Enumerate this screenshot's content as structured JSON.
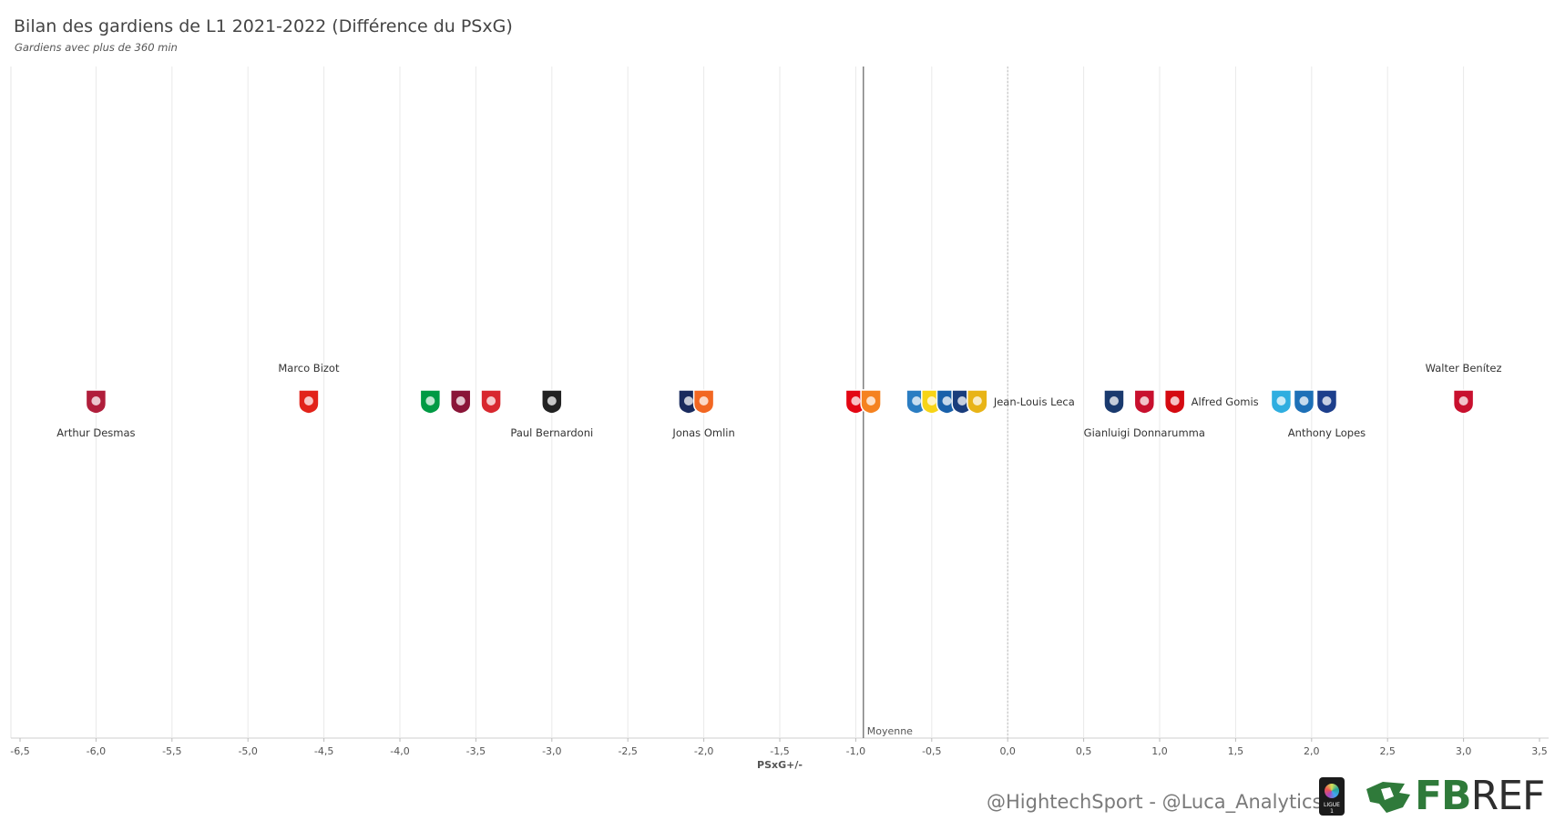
{
  "header": {
    "title": "Bilan des gardiens de L1 2021-2022 (Différence du PSxG)",
    "subtitle": "Gardiens avec plus de 360 min"
  },
  "footer": {
    "credit": "@HightechSport - @Luca_Analytics",
    "fbref_green": "FB",
    "fbref_dark": "REF",
    "league_logo_text": "LIGUE 1"
  },
  "colors": {
    "grid": "#e9e9e9",
    "mean_line": "#7f7f7f",
    "zero_line": "#bdbdbd"
  },
  "chart_data": {
    "type": "scatter",
    "title": "Bilan des gardiens de L1 2021-2022 (Différence du PSxG)",
    "subtitle": "Gardiens avec plus de 360 min",
    "xlabel": "PSxG+/-",
    "ylabel": "",
    "xlim": [
      -6.5,
      3.5
    ],
    "xticks": [
      "-6,5",
      "-6,0",
      "-5,5",
      "-5,0",
      "-4,5",
      "-4,0",
      "-3,5",
      "-3,0",
      "-2,5",
      "-2,0",
      "-1,5",
      "-1,0",
      "-0,5",
      "0,0",
      "0,5",
      "1,0",
      "1,5",
      "2,0",
      "2,5",
      "3,0",
      "3,5"
    ],
    "grid": true,
    "reference_lines": [
      {
        "label": "Moyenne",
        "x": -0.95
      },
      {
        "label": "",
        "x": 0.0
      }
    ],
    "points": [
      {
        "team": "Clermont",
        "x": -6.0,
        "label": "Arthur Desmas",
        "label_pos": "below",
        "icon": "clermont-crest-icon",
        "color": "#b01e3b"
      },
      {
        "team": "Brest",
        "x": -4.6,
        "label": "Marco Bizot",
        "label_pos": "above",
        "icon": "brest-crest-icon",
        "color": "#e2231a"
      },
      {
        "team": "Saint-Etienne",
        "x": -3.8,
        "label": "",
        "icon": "saint-etienne-crest-icon",
        "color": "#009a44"
      },
      {
        "team": "Metz",
        "x": -3.6,
        "label": "",
        "icon": "metz-crest-icon",
        "color": "#8a1538"
      },
      {
        "team": "Reims",
        "x": -3.4,
        "label": "",
        "icon": "reims-crest-icon",
        "color": "#d8282f"
      },
      {
        "team": "Angers",
        "x": -3.0,
        "label": "Paul Bernardoni",
        "label_pos": "below",
        "icon": "angers-crest-icon",
        "color": "#222222"
      },
      {
        "team": "Bordeaux",
        "x": -2.1,
        "label": "",
        "icon": "bordeaux-crest-icon",
        "color": "#1a2b5e"
      },
      {
        "team": "Montpellier",
        "x": -2.0,
        "label": "Jonas Omlin",
        "label_pos": "below",
        "icon": "montpellier-crest-icon",
        "color": "#f26722"
      },
      {
        "team": "Monaco",
        "x": -1.0,
        "label": "",
        "icon": "monaco-crest-icon",
        "color": "#e30613"
      },
      {
        "team": "Lorient",
        "x": -0.9,
        "label": "",
        "icon": "lorient-crest-icon",
        "color": "#f58220"
      },
      {
        "team": "Troyes",
        "x": -0.6,
        "label": "",
        "icon": "troyes-crest-icon",
        "color": "#2b7dc2"
      },
      {
        "team": "Nantes",
        "x": -0.5,
        "label": "",
        "icon": "nantes-crest-icon",
        "color": "#f7d417"
      },
      {
        "team": "Strasbourg",
        "x": -0.4,
        "label": "",
        "icon": "strasbourg-crest-icon",
        "color": "#1960aa"
      },
      {
        "team": "Montpellier",
        "x": -0.3,
        "label": "",
        "icon": "montpellier-crest-icon",
        "color": "#1a3d7c"
      },
      {
        "team": "Lens",
        "x": -0.2,
        "label": "Jean-Louis Leca",
        "label_pos": "right",
        "icon": "lens-crest-icon",
        "color": "#e8b417"
      },
      {
        "team": "PSG",
        "x": 0.7,
        "label": "",
        "icon": "psg-crest-icon",
        "color": "#1a3a6e"
      },
      {
        "team": "Lille",
        "x": 0.9,
        "label": "Gianluigi Donnarumma",
        "label_pos": "below",
        "icon": "lille-crest-icon",
        "color": "#c8102e"
      },
      {
        "team": "Rennes",
        "x": 1.1,
        "label": "Alfred Gomis",
        "label_pos": "right",
        "icon": "rennes-crest-icon",
        "color": "#d50a11"
      },
      {
        "team": "Marseille",
        "x": 1.8,
        "label": "",
        "icon": "marseille-crest-icon",
        "color": "#2faee0"
      },
      {
        "team": "Strasbourg",
        "x": 1.95,
        "label": "",
        "icon": "strasbourg-crest-icon",
        "color": "#1d70b7"
      },
      {
        "team": "Lyon",
        "x": 2.1,
        "label": "Anthony Lopes",
        "label_pos": "below",
        "icon": "lyon-crest-icon",
        "color": "#1d3f8c"
      },
      {
        "team": "Nice",
        "x": 3.0,
        "label": "Walter Benítez",
        "label_pos": "above",
        "icon": "nice-crest-icon",
        "color": "#c8102e"
      }
    ]
  }
}
